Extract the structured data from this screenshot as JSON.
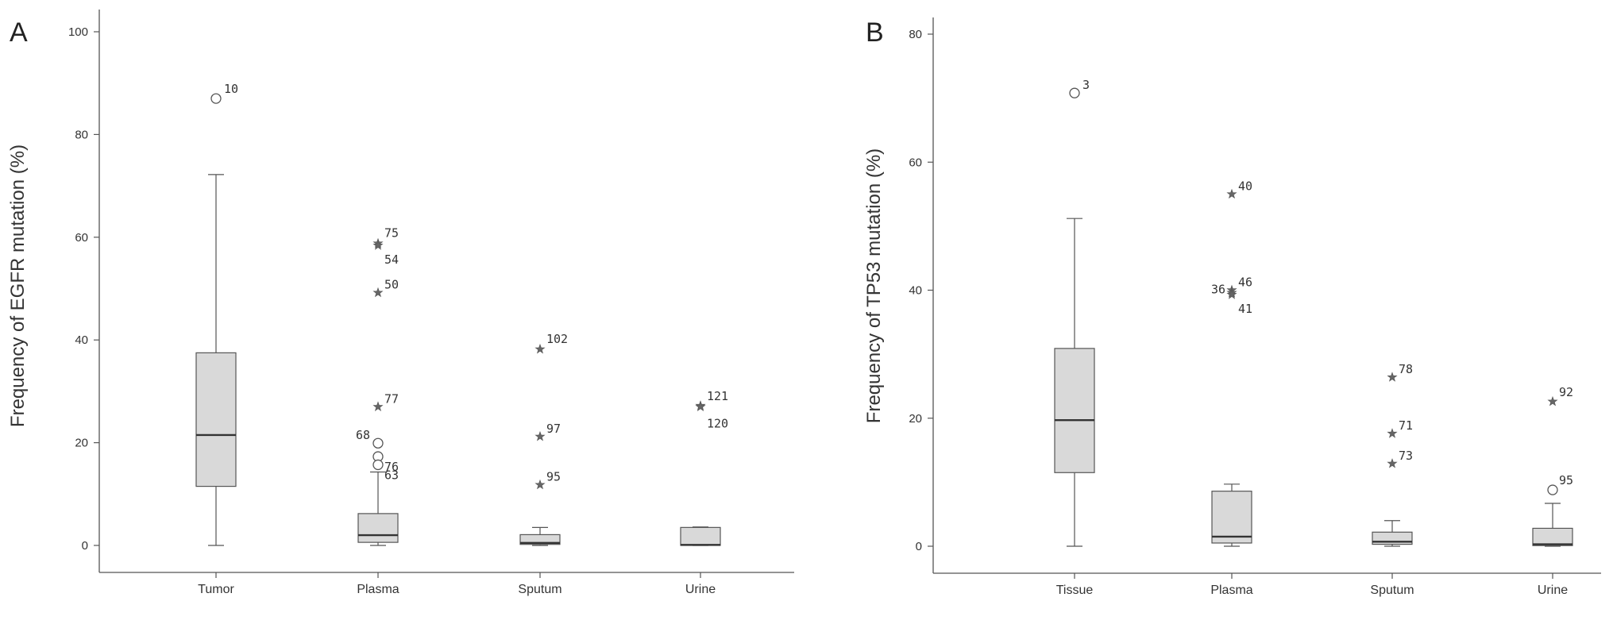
{
  "chart_data": [
    {
      "type": "boxplot",
      "panel_label": "A",
      "ylabel": "Frequency of EGFR mutation  (%)",
      "ylim": [
        0,
        100
      ],
      "yticks": [
        "0",
        "20",
        "40",
        "60",
        "80",
        "100"
      ],
      "categories": [
        "Tumor",
        "Plasma",
        "Sputum",
        "Urine"
      ],
      "boxes": [
        {
          "category": "Tumor",
          "whisker_low": 0,
          "q1": 11.5,
          "median": 21.5,
          "q3": 37.5,
          "whisker_high": 72.2
        },
        {
          "category": "Plasma",
          "whisker_low": 0,
          "q1": 0.6,
          "median": 2.0,
          "q3": 6.2,
          "whisker_high": 14.3
        },
        {
          "category": "Sputum",
          "whisker_low": 0,
          "q1": 0.2,
          "median": 0.5,
          "q3": 2.1,
          "whisker_high": 3.5
        },
        {
          "category": "Urine",
          "whisker_low": 0,
          "q1": 0.0,
          "median": 0.1,
          "q3": 3.5,
          "whisker_high": 3.6
        }
      ],
      "outliers": [
        {
          "category": "Tumor",
          "value": 87.0,
          "marker": "circle",
          "label": "10"
        },
        {
          "category": "Plasma",
          "value": 58.8,
          "marker": "star",
          "label": "75"
        },
        {
          "category": "Plasma",
          "value": 58.4,
          "marker": "star",
          "label": "54"
        },
        {
          "category": "Plasma",
          "value": 49.2,
          "marker": "star",
          "label": "50"
        },
        {
          "category": "Plasma",
          "value": 27.0,
          "marker": "star",
          "label": "77"
        },
        {
          "category": "Plasma",
          "value": 19.9,
          "marker": "circle",
          "label": "68"
        },
        {
          "category": "Plasma",
          "value": 17.3,
          "marker": "circle",
          "label": "76"
        },
        {
          "category": "Plasma",
          "value": 15.7,
          "marker": "circle",
          "label": "63"
        },
        {
          "category": "Sputum",
          "value": 38.2,
          "marker": "star",
          "label": "102"
        },
        {
          "category": "Sputum",
          "value": 21.2,
          "marker": "star",
          "label": "97"
        },
        {
          "category": "Sputum",
          "value": 11.8,
          "marker": "star",
          "label": "95"
        },
        {
          "category": "Urine",
          "value": 27.2,
          "marker": "star",
          "label": "121"
        },
        {
          "category": "Urine",
          "value": 27.0,
          "marker": "star",
          "label": "120"
        }
      ]
    },
    {
      "type": "boxplot",
      "panel_label": "B",
      "ylabel": "Frequency of TP53 mutation  (%)",
      "ylim": [
        0,
        80
      ],
      "yticks": [
        "0",
        "20",
        "40",
        "60",
        "80"
      ],
      "categories": [
        "Tissue",
        "Plasma",
        "Sputum",
        "Urine"
      ],
      "boxes": [
        {
          "category": "Tissue",
          "whisker_low": 0,
          "q1": 11.5,
          "median": 19.7,
          "q3": 30.9,
          "whisker_high": 51.2
        },
        {
          "category": "Plasma",
          "whisker_low": 0,
          "q1": 0.5,
          "median": 1.5,
          "q3": 8.6,
          "whisker_high": 9.7
        },
        {
          "category": "Sputum",
          "whisker_low": 0,
          "q1": 0.3,
          "median": 0.7,
          "q3": 2.2,
          "whisker_high": 4.0
        },
        {
          "category": "Urine",
          "whisker_low": 0,
          "q1": 0.1,
          "median": 0.3,
          "q3": 2.8,
          "whisker_high": 6.7
        }
      ],
      "outliers": [
        {
          "category": "Tissue",
          "value": 70.8,
          "marker": "circle",
          "label": "3"
        },
        {
          "category": "Plasma",
          "value": 55.0,
          "marker": "star",
          "label": "40"
        },
        {
          "category": "Plasma",
          "value": 40.0,
          "marker": "star",
          "label": "46"
        },
        {
          "category": "Plasma",
          "value": 39.6,
          "marker": "star",
          "label": "36"
        },
        {
          "category": "Plasma",
          "value": 39.3,
          "marker": "star",
          "label": "41"
        },
        {
          "category": "Sputum",
          "value": 26.4,
          "marker": "star",
          "label": "78"
        },
        {
          "category": "Sputum",
          "value": 17.6,
          "marker": "star",
          "label": "71"
        },
        {
          "category": "Sputum",
          "value": 12.9,
          "marker": "star",
          "label": "73"
        },
        {
          "category": "Urine",
          "value": 22.6,
          "marker": "star",
          "label": "92"
        },
        {
          "category": "Urine",
          "value": 8.8,
          "marker": "circle",
          "label": "95"
        }
      ]
    }
  ],
  "colors": {
    "box_fill": "#d9d9d9",
    "line": "#555555",
    "text": "#333333"
  }
}
